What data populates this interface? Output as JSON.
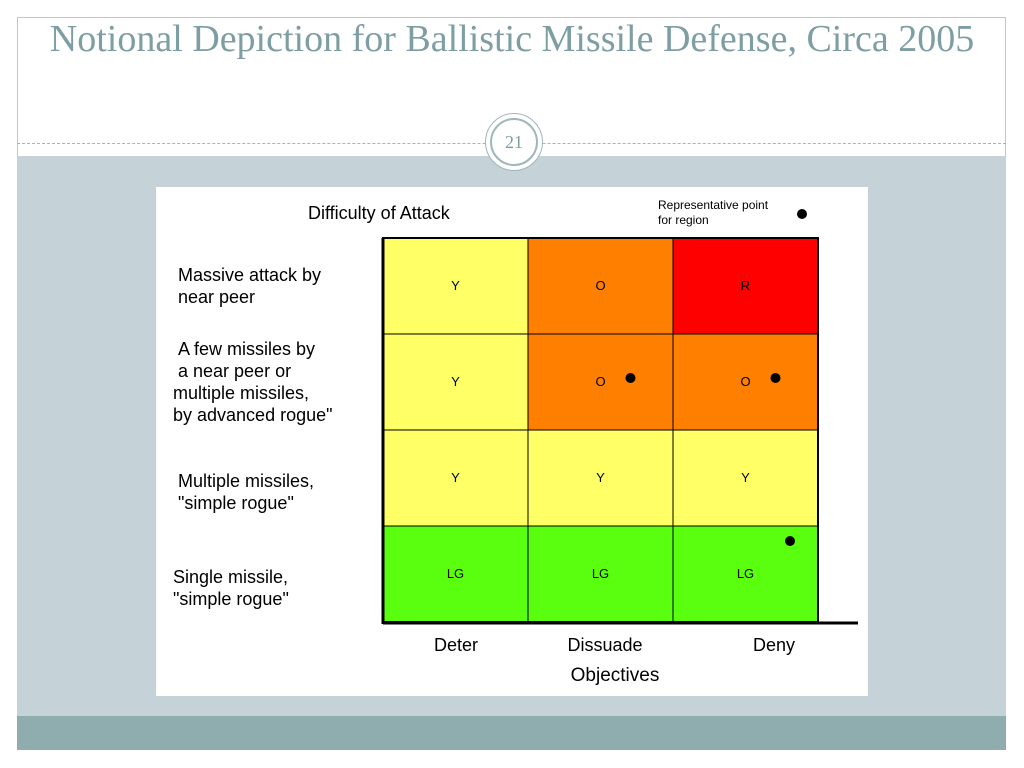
{
  "slide": {
    "title": "Notional Depiction for Ballistic Missile Defense, Circa 2005",
    "page_number": "21"
  },
  "diagram": {
    "y_axis_title": "Difficulty of Attack",
    "x_axis_title": "Objectives",
    "legend_text_line1": "Representative point",
    "legend_text_line2": "for region",
    "columns": [
      "Deter",
      "Dissuade",
      "Deny"
    ],
    "rows": [
      {
        "label_lines": [
          "Massive attack by",
          "near peer"
        ],
        "cells": [
          "Y",
          "O",
          "R"
        ],
        "colors": [
          "#ffff66",
          "#ff7f00",
          "#ff0000"
        ],
        "points": [
          false,
          false,
          false
        ]
      },
      {
        "label_lines": [
          "A few missiles by",
          "a near peer or",
          "multiple missiles,",
          "by advanced rogue\""
        ],
        "cells": [
          "Y",
          "O",
          "O"
        ],
        "colors": [
          "#ffff66",
          "#ff7f00",
          "#ff7f00"
        ],
        "points": [
          false,
          true,
          true
        ]
      },
      {
        "label_lines": [
          "Multiple missiles,",
          "\"simple rogue\""
        ],
        "cells": [
          "Y",
          "Y",
          "Y"
        ],
        "colors": [
          "#ffff66",
          "#ffff66",
          "#ffff66"
        ],
        "points": [
          false,
          false,
          false
        ]
      },
      {
        "label_lines": [
          "Single missile,",
          "\"simple rogue\""
        ],
        "cells": [
          "LG",
          "LG",
          "LG"
        ],
        "colors": [
          "#5aff0f",
          "#5aff0f",
          "#5aff0f"
        ],
        "points": [
          false,
          false,
          true
        ]
      }
    ]
  }
}
